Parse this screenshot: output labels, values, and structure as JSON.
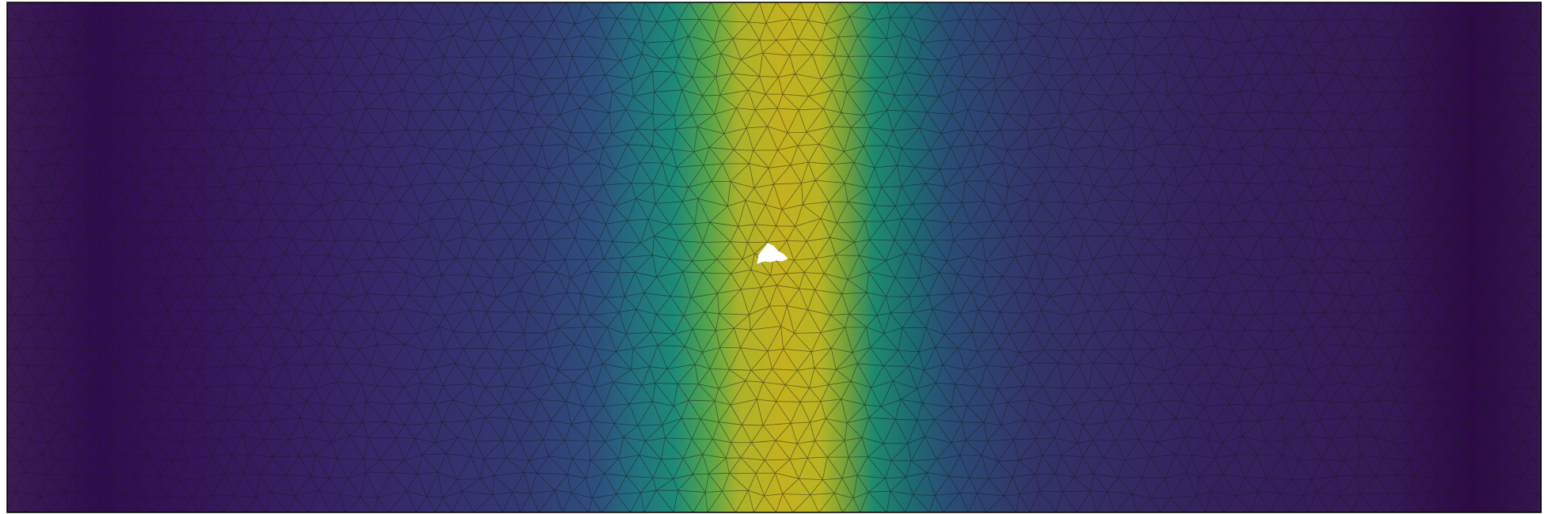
{
  "figure": {
    "kind": "triangular-mesh-field-plot",
    "colormap": "viridis",
    "colormap_stops": [
      "#440154",
      "#3b528b",
      "#21918c",
      "#5ec962",
      "#fde725"
    ],
    "mesh_line_color": "#1a1a1a",
    "frame_color": "#000000",
    "background": "#ffffff",
    "has_hole": true,
    "hole_color": "#ffffff",
    "title": "",
    "colorbar": "none",
    "axes": "none"
  }
}
